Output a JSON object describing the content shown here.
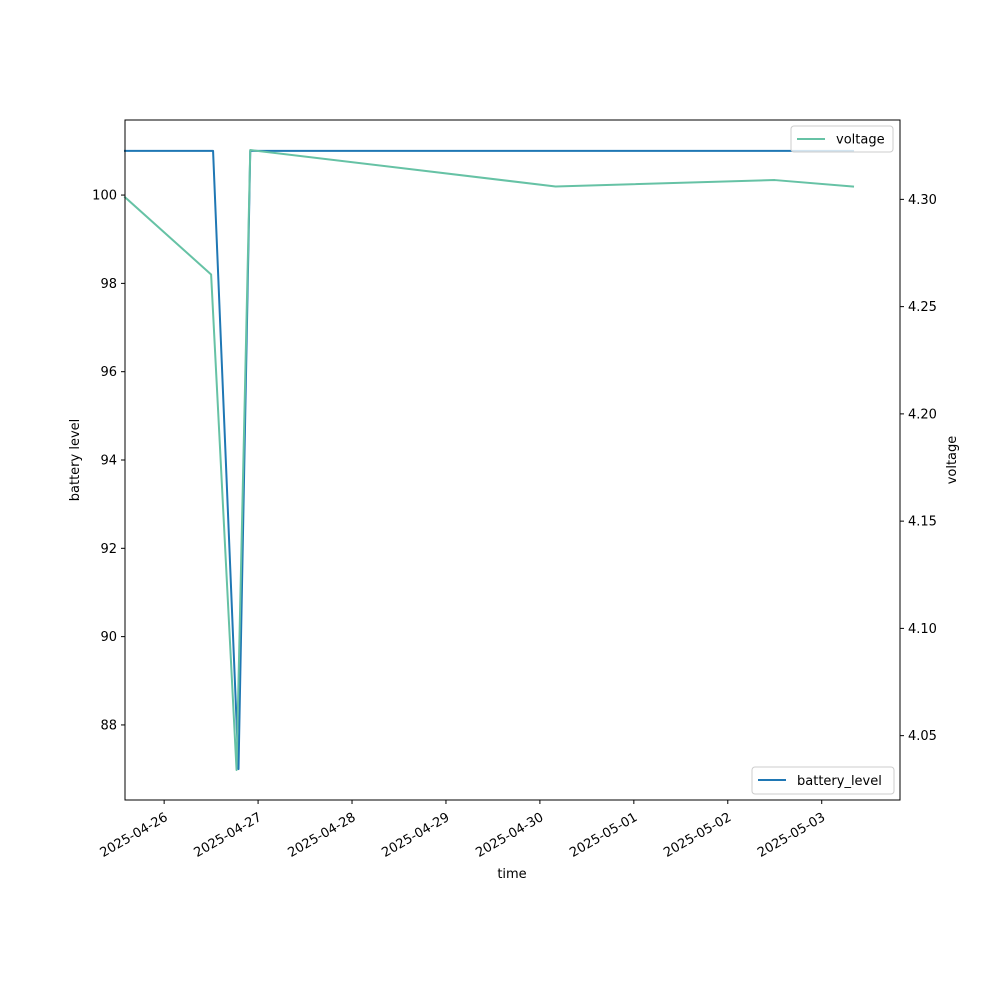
{
  "chart_data": {
    "type": "line",
    "xlabel": "time",
    "ylabel_left": "battery level",
    "ylabel_right": "voltage",
    "x_range": [
      "2025-04-25 14:00",
      "2025-05-03 20:00"
    ],
    "x_ticks": [
      "2025-04-26",
      "2025-04-27",
      "2025-04-28",
      "2025-04-29",
      "2025-04-30",
      "2025-05-01",
      "2025-05-02",
      "2025-05-03"
    ],
    "ylim_left": [
      86.3,
      101.7
    ],
    "yticks_left": [
      88,
      90,
      92,
      94,
      96,
      98,
      100
    ],
    "ylim_right": [
      4.02,
      4.337
    ],
    "yticks_right": [
      4.05,
      4.1,
      4.15,
      4.2,
      4.25,
      4.3
    ],
    "grid": false,
    "series": [
      {
        "name": "battery_level",
        "axis": "left",
        "color": "#1f77b4",
        "legend_position": "lower right",
        "points": [
          {
            "x": "2025-04-25 14:00",
            "y": 101
          },
          {
            "x": "2025-04-26 12:30",
            "y": 101
          },
          {
            "x": "2025-04-26 19:00",
            "y": 87
          },
          {
            "x": "2025-04-26 22:00",
            "y": 101
          },
          {
            "x": "2025-05-03 08:00",
            "y": 101
          }
        ]
      },
      {
        "name": "voltage",
        "axis": "right",
        "color": "#66c2a5",
        "legend_position": "upper right",
        "points": [
          {
            "x": "2025-04-25 14:00",
            "y": 4.301
          },
          {
            "x": "2025-04-26 12:00",
            "y": 4.265
          },
          {
            "x": "2025-04-26 18:30",
            "y": 4.034
          },
          {
            "x": "2025-04-26 22:00",
            "y": 4.323
          },
          {
            "x": "2025-04-30 04:00",
            "y": 4.306
          },
          {
            "x": "2025-05-02 12:00",
            "y": 4.309
          },
          {
            "x": "2025-05-03 08:00",
            "y": 4.306
          }
        ]
      }
    ]
  }
}
